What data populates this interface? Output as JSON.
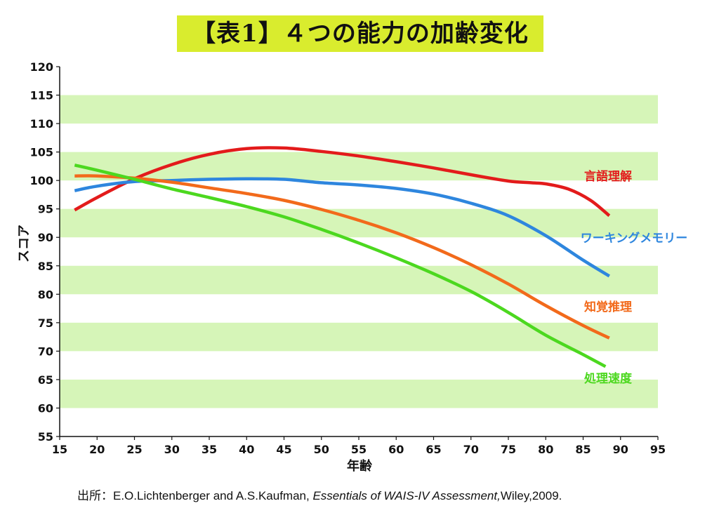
{
  "title": "【表1】４つの能力の加齢変化",
  "source": {
    "prefix": "出所：E.O.Lichtenberger and A.S.Kaufman, ",
    "book": "Essentials of WAIS-IV Assessment,",
    "suffix": "Wiley,2009."
  },
  "colors": {
    "band": "#d6f5b8",
    "title_bg": "#d9ec2e"
  },
  "chart_data": {
    "type": "line",
    "xlabel": "年齢",
    "ylabel": "スコア",
    "xlim": [
      15,
      95
    ],
    "ylim": [
      55,
      120
    ],
    "xticks": [
      15,
      20,
      25,
      30,
      35,
      40,
      45,
      50,
      55,
      60,
      65,
      70,
      75,
      80,
      85,
      90,
      95
    ],
    "yticks": [
      55,
      60,
      65,
      70,
      75,
      80,
      85,
      90,
      95,
      100,
      105,
      110,
      115,
      120
    ],
    "grid": "alternating horizontal bands",
    "legend": "labels beside line ends",
    "series": [
      {
        "name": "言語理解",
        "color": "#e31b1b",
        "x": [
          17,
          20,
          25,
          30,
          35,
          40,
          45,
          50,
          55,
          60,
          65,
          70,
          75,
          78,
          80,
          83,
          86,
          88.5
        ],
        "y": [
          94.8,
          97.0,
          100.3,
          102.8,
          104.6,
          105.6,
          105.7,
          105.1,
          104.3,
          103.3,
          102.2,
          101.0,
          99.9,
          99.6,
          99.4,
          98.5,
          96.5,
          93.8
        ]
      },
      {
        "name": "ワーキングメモリー",
        "color": "#2e86de",
        "x": [
          17,
          20,
          25,
          30,
          35,
          40,
          45,
          50,
          55,
          60,
          65,
          70,
          75,
          80,
          85,
          88.5
        ],
        "y": [
          98.2,
          99.0,
          99.8,
          100.0,
          100.2,
          100.3,
          100.2,
          99.6,
          99.2,
          98.6,
          97.6,
          96.0,
          93.8,
          90.3,
          86.0,
          83.2
        ]
      },
      {
        "name": "知覚推理",
        "color": "#f26a1b",
        "x": [
          17,
          20,
          25,
          30,
          35,
          40,
          45,
          50,
          55,
          60,
          65,
          70,
          75,
          80,
          85,
          88.5
        ],
        "y": [
          100.8,
          100.8,
          100.4,
          99.7,
          98.7,
          97.7,
          96.5,
          94.9,
          93.0,
          90.8,
          88.2,
          85.2,
          81.8,
          78.0,
          74.5,
          72.3
        ]
      },
      {
        "name": "処理速度",
        "color": "#4cd81f",
        "x": [
          17,
          20,
          25,
          30,
          35,
          40,
          45,
          50,
          55,
          60,
          65,
          70,
          75,
          80,
          85,
          88
        ],
        "y": [
          102.7,
          101.8,
          100.2,
          98.5,
          97.0,
          95.4,
          93.6,
          91.4,
          89.0,
          86.4,
          83.6,
          80.5,
          76.8,
          72.8,
          69.4,
          67.3
        ]
      }
    ]
  }
}
